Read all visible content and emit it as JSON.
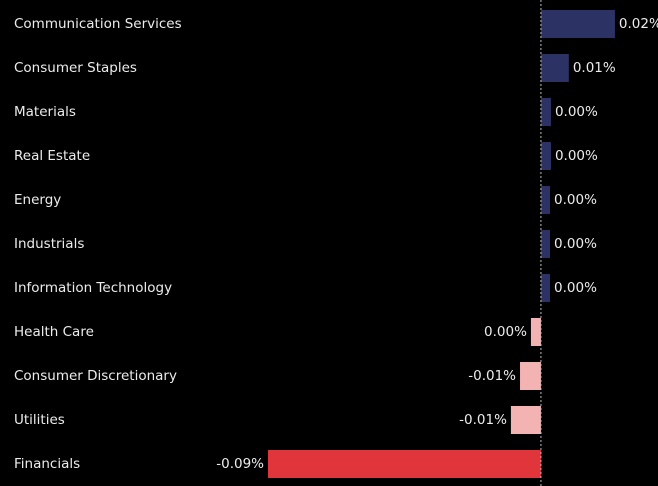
{
  "chart_data": {
    "type": "barh",
    "categories": [
      "Communication Services",
      "Consumer Staples",
      "Materials",
      "Real Estate",
      "Energy",
      "Industrials",
      "Information Technology",
      "Health Care",
      "Consumer Discretionary",
      "Utilities",
      "Financials"
    ],
    "values": [
      0.0244,
      0.0092,
      0.0033,
      0.0033,
      0.003,
      0.003,
      0.003,
      -0.0033,
      -0.0069,
      -0.0099,
      -0.09
    ],
    "value_labels": [
      "0.02%",
      "0.01%",
      "0.00%",
      "0.00%",
      "0.00%",
      "0.00%",
      "0.00%",
      "0.00%",
      "-0.01%",
      "-0.01%",
      "-0.09%"
    ],
    "colors": [
      "#2c3263",
      "#2c3263",
      "#2c3263",
      "#2c3263",
      "#2c3263",
      "#2c3263",
      "#2c3263",
      "#f3b3b3",
      "#f3b3b3",
      "#f3b3b3",
      "#e0353b"
    ],
    "xlim": [
      -0.09,
      0.0386
    ]
  }
}
